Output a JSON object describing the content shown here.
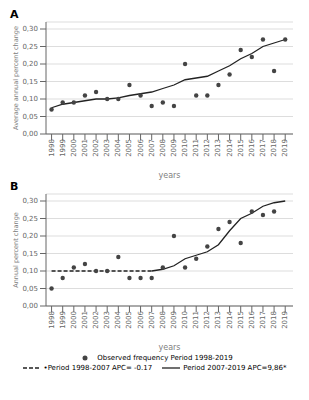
{
  "chart_data": [
    {
      "type": "scatter",
      "title": "A",
      "xlabel": "years",
      "ylabel": "Average annual percent change",
      "xlim": [
        1997.5,
        2019.7
      ],
      "xticks": [
        1998,
        1999,
        2000,
        2001,
        2002,
        2003,
        2004,
        2005,
        2006,
        2007,
        2008,
        2009,
        2010,
        2011,
        2012,
        2013,
        2014,
        2015,
        2016,
        2017,
        2018,
        2019
      ],
      "ylim": [
        0.0,
        0.32
      ],
      "yticks": [
        {
          "value": 0.0,
          "label": "0,00"
        },
        {
          "value": 0.05,
          "label": "0,05"
        },
        {
          "value": 0.1,
          "label": "0,10"
        },
        {
          "value": 0.15,
          "label": "0,15"
        },
        {
          "value": 0.2,
          "label": "0,20"
        },
        {
          "value": 0.25,
          "label": "0,25"
        },
        {
          "value": 0.3,
          "label": "0,30"
        }
      ],
      "grid": "y",
      "series": [
        {
          "type": "scatter",
          "marker": "circle",
          "color": "#444444",
          "x": [
            1998,
            1999,
            2000,
            2001,
            2002,
            2003,
            2004,
            2005,
            2006,
            2007,
            2008,
            2009,
            2010,
            2011,
            2012,
            2013,
            2014,
            2015,
            2016,
            2017,
            2018,
            2019
          ],
          "values": [
            0.07,
            0.09,
            0.09,
            0.11,
            0.12,
            0.1,
            0.1,
            0.14,
            0.11,
            0.08,
            0.09,
            0.08,
            0.2,
            0.11,
            0.11,
            0.14,
            0.17,
            0.24,
            0.22,
            0.27,
            0.18,
            0.27
          ]
        },
        {
          "type": "line",
          "line_style": "solid",
          "color": "#222222",
          "x": [
            1998,
            1999,
            2000,
            2001,
            2002,
            2003,
            2004,
            2005,
            2006,
            2007,
            2008,
            2009,
            2010,
            2011,
            2012,
            2013,
            2014,
            2015,
            2016,
            2017,
            2018,
            2019
          ],
          "values": [
            0.075,
            0.085,
            0.09,
            0.095,
            0.1,
            0.1,
            0.103,
            0.11,
            0.115,
            0.12,
            0.13,
            0.14,
            0.155,
            0.16,
            0.165,
            0.18,
            0.195,
            0.215,
            0.23,
            0.25,
            0.26,
            0.27
          ]
        }
      ]
    },
    {
      "type": "scatter",
      "title": "B",
      "xlabel": "years",
      "ylabel": "Annual percent change",
      "xlim": [
        1997.5,
        2019.7
      ],
      "xticks": [
        1998,
        1999,
        2000,
        2001,
        2002,
        2003,
        2004,
        2005,
        2006,
        2007,
        2008,
        2009,
        2010,
        2011,
        2012,
        2013,
        2014,
        2015,
        2016,
        2017,
        2018,
        2019
      ],
      "ylim": [
        0.0,
        0.32
      ],
      "yticks": [
        {
          "value": 0.0,
          "label": "0,00"
        },
        {
          "value": 0.05,
          "label": "0,05"
        },
        {
          "value": 0.1,
          "label": "0,10"
        },
        {
          "value": 0.15,
          "label": "0,15"
        },
        {
          "value": 0.2,
          "label": "0,20"
        },
        {
          "value": 0.25,
          "label": "0,25"
        },
        {
          "value": 0.3,
          "label": "0,30"
        }
      ],
      "grid": "y",
      "legend": "bottom",
      "series": [
        {
          "name": "Observed frequency Period 1998-2019",
          "type": "scatter",
          "marker": "circle",
          "color": "#444444",
          "x": [
            1998,
            1999,
            2000,
            2001,
            2002,
            2003,
            2004,
            2005,
            2006,
            2007,
            2008,
            2009,
            2010,
            2011,
            2012,
            2013,
            2014,
            2015,
            2016,
            2017,
            2018,
            2019
          ],
          "values": [
            0.05,
            0.08,
            0.11,
            0.12,
            0.1,
            0.1,
            0.14,
            0.08,
            0.08,
            0.08,
            0.11,
            0.2,
            0.11,
            0.135,
            0.17,
            0.22,
            0.24,
            0.18,
            0.27,
            0.26,
            0.27,
            null
          ]
        },
        {
          "name": "•Period 1998-2007 APC= -0.17",
          "type": "line",
          "line_style": "dashed",
          "color": "#222222",
          "x": [
            1998,
            1999,
            2000,
            2001,
            2002,
            2003,
            2004,
            2005,
            2006,
            2007
          ],
          "values": [
            0.1,
            0.1,
            0.1,
            0.1,
            0.1,
            0.1,
            0.1,
            0.1,
            0.1,
            0.1
          ]
        },
        {
          "name": "Period 2007-2019 APC=9,86*",
          "type": "line",
          "line_style": "solid",
          "color": "#222222",
          "x": [
            2007,
            2008,
            2009,
            2010,
            2011,
            2012,
            2013,
            2014,
            2015,
            2016,
            2017,
            2018,
            2019
          ],
          "values": [
            0.1,
            0.105,
            0.115,
            0.135,
            0.145,
            0.155,
            0.175,
            0.215,
            0.25,
            0.265,
            0.285,
            0.295,
            0.3
          ]
        }
      ]
    }
  ]
}
